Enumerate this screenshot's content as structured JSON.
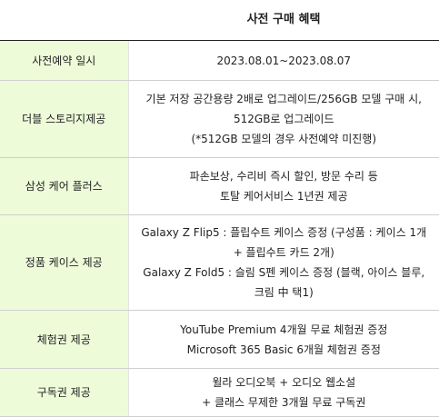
{
  "header": {
    "label_column": "",
    "title": "사전 구매 혜택"
  },
  "rows": [
    {
      "label": "사전예약 일시",
      "lines": [
        "2023.08.01~2023.08.07"
      ]
    },
    {
      "label": "더블 스토리지제공",
      "lines": [
        "기본 저장 공간용량 2배로 업그레이드/256GB 모델 구매 시,",
        "512GB로 업그레이드",
        "(*512GB 모델의 경우 사전예약 미진행)"
      ]
    },
    {
      "label": "삼성 케어 플러스",
      "lines": [
        "파손보상, 수리비 즉시 할인, 방문 수리 등",
        "토탈 케어서비스 1년권 제공"
      ]
    },
    {
      "label": "정품 케이스 제공",
      "lines": [
        "Galaxy Z Flip5 : 플립수트 케이스 증정 (구성품 : 케이스 1개",
        "+ 플립수트 카드 2개)",
        "Galaxy Z Fold5 : 슬림 S펜 케이스 증정 (블랙, 아이스 블루,",
        "크림 中 택1)"
      ]
    },
    {
      "label": "체험권 제공",
      "lines": [
        "YouTube Premium 4개월 무료 체험권 증정",
        "Microsoft 365 Basic 6개월 체험권 증정"
      ]
    },
    {
      "label": "구독권 제공",
      "lines": [
        "윌라 오디오북 + 오디오 웹소설",
        "+ 클래스 무제한 3개월 무료 구독권"
      ]
    }
  ]
}
